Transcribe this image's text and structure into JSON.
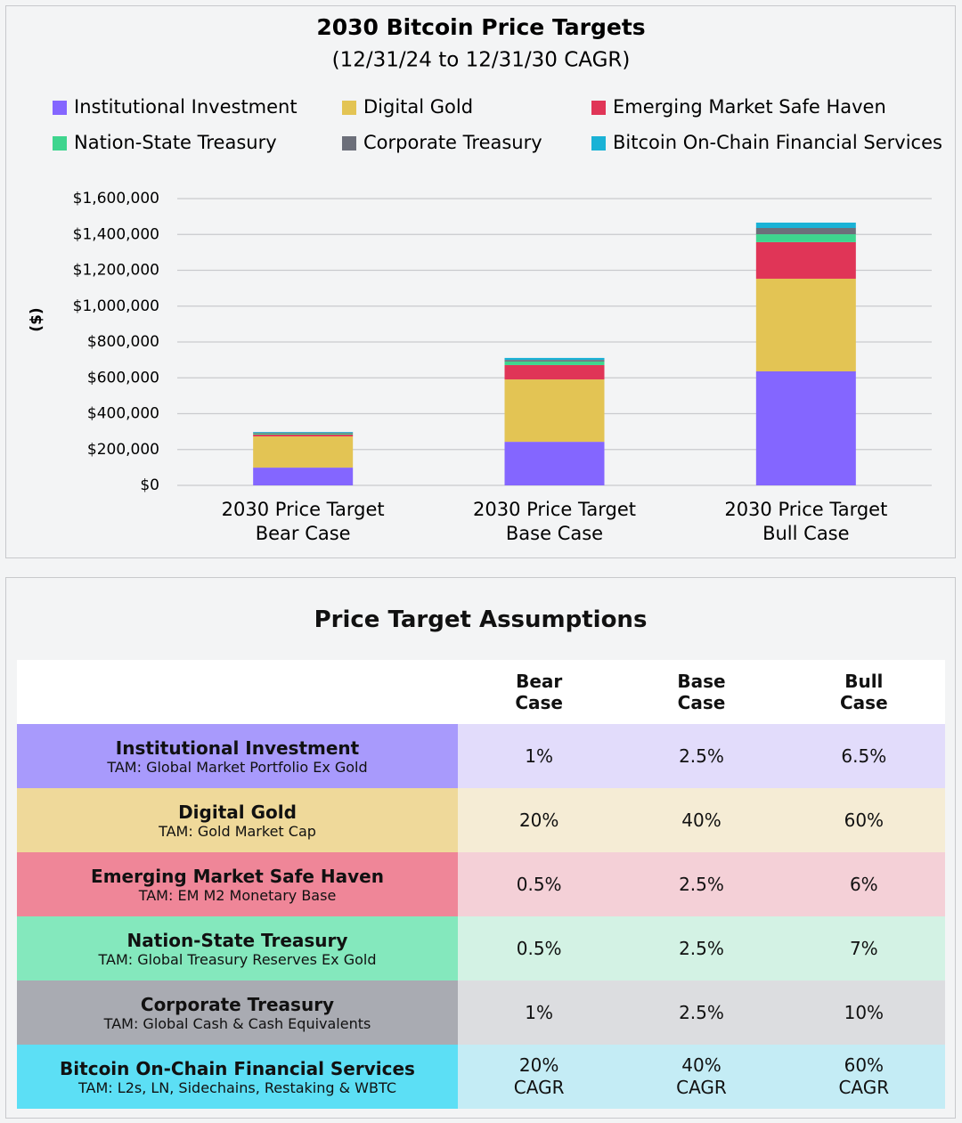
{
  "chart_data": {
    "type": "stacked_bar",
    "title": "2030 Bitcoin Price Targets",
    "subtitle": "(12/31/24 to 12/31/30 CAGR)",
    "ylabel": "($)",
    "categories": [
      [
        "2030 Price Target",
        "Bear Case"
      ],
      [
        "2030 Price Target",
        "Base Case"
      ],
      [
        "2030 Price Target",
        "Bull Case"
      ]
    ],
    "series": [
      {
        "name": "Institutional Investment",
        "color": "#8466ff",
        "values": [
          99000,
          243000,
          636000
        ]
      },
      {
        "name": "Digital Gold",
        "color": "#e3c454",
        "values": [
          174000,
          348000,
          517000
        ]
      },
      {
        "name": "Emerging Market Safe Haven",
        "color": "#e03557",
        "values": [
          10000,
          80000,
          204000
        ]
      },
      {
        "name": "Nation-State Treasury",
        "color": "#3ed58e",
        "values": [
          6000,
          20000,
          44000
        ]
      },
      {
        "name": "Corporate Treasury",
        "color": "#6c6f7a",
        "values": [
          5000,
          9000,
          35000
        ]
      },
      {
        "name": "Bitcoin On-Chain Financial Services",
        "color": "#1ab2d6",
        "values": [
          4000,
          11000,
          30000
        ]
      }
    ],
    "ylim": [
      0,
      1600000
    ],
    "yticks": [
      {
        "value": 0,
        "label": "$0"
      },
      {
        "value": 200000,
        "label": "$200,000"
      },
      {
        "value": 400000,
        "label": "$400,000"
      },
      {
        "value": 600000,
        "label": "$600,000"
      },
      {
        "value": 800000,
        "label": "$800,000"
      },
      {
        "value": 1000000,
        "label": "$1,000,000"
      },
      {
        "value": 1200000,
        "label": "$1,200,000"
      },
      {
        "value": 1400000,
        "label": "$1,400,000"
      },
      {
        "value": 1600000,
        "label": "$1,600,000"
      }
    ],
    "grid": true
  },
  "table": {
    "title": "Price Target Assumptions",
    "header": [
      [
        "Bear",
        "Case"
      ],
      [
        "Base",
        "Case"
      ],
      [
        "Bull",
        "Case"
      ]
    ],
    "rows": [
      {
        "name": "Institutional Investment",
        "tam": "TAM: Global Market Portfolio Ex Gold",
        "color": "#a89afc",
        "light": "#e2dcfb",
        "values": [
          "1%",
          "2.5%",
          "6.5%"
        ]
      },
      {
        "name": "Digital Gold",
        "tam": "TAM: Gold Market Cap",
        "color": "#efd99a",
        "light": "#f5ecd5",
        "values": [
          "20%",
          "40%",
          "60%"
        ]
      },
      {
        "name": "Emerging Market Safe Haven",
        "tam": "TAM: EM M2 Monetary Base",
        "color": "#ef8698",
        "light": "#f4d0d7",
        "values": [
          "0.5%",
          "2.5%",
          "6%"
        ]
      },
      {
        "name": "Nation-State Treasury",
        "tam": "TAM: Global Treasury Reserves Ex Gold",
        "color": "#84e8bd",
        "light": "#d3f2e4",
        "values": [
          "0.5%",
          "2.5%",
          "7%"
        ]
      },
      {
        "name": "Corporate Treasury",
        "tam": "TAM: Global Cash & Cash Equivalents",
        "color": "#a9abb2",
        "light": "#dcdde0",
        "values": [
          "1%",
          "2.5%",
          "10%"
        ]
      },
      {
        "name": "Bitcoin On-Chain Financial Services",
        "tam": "TAM: L2s, LN, Sidechains, Restaking & WBTC",
        "color": "#5cdff5",
        "light": "#c4ecf5",
        "values": [
          "20% CAGR",
          "40% CAGR",
          "60% CAGR"
        ]
      }
    ]
  }
}
